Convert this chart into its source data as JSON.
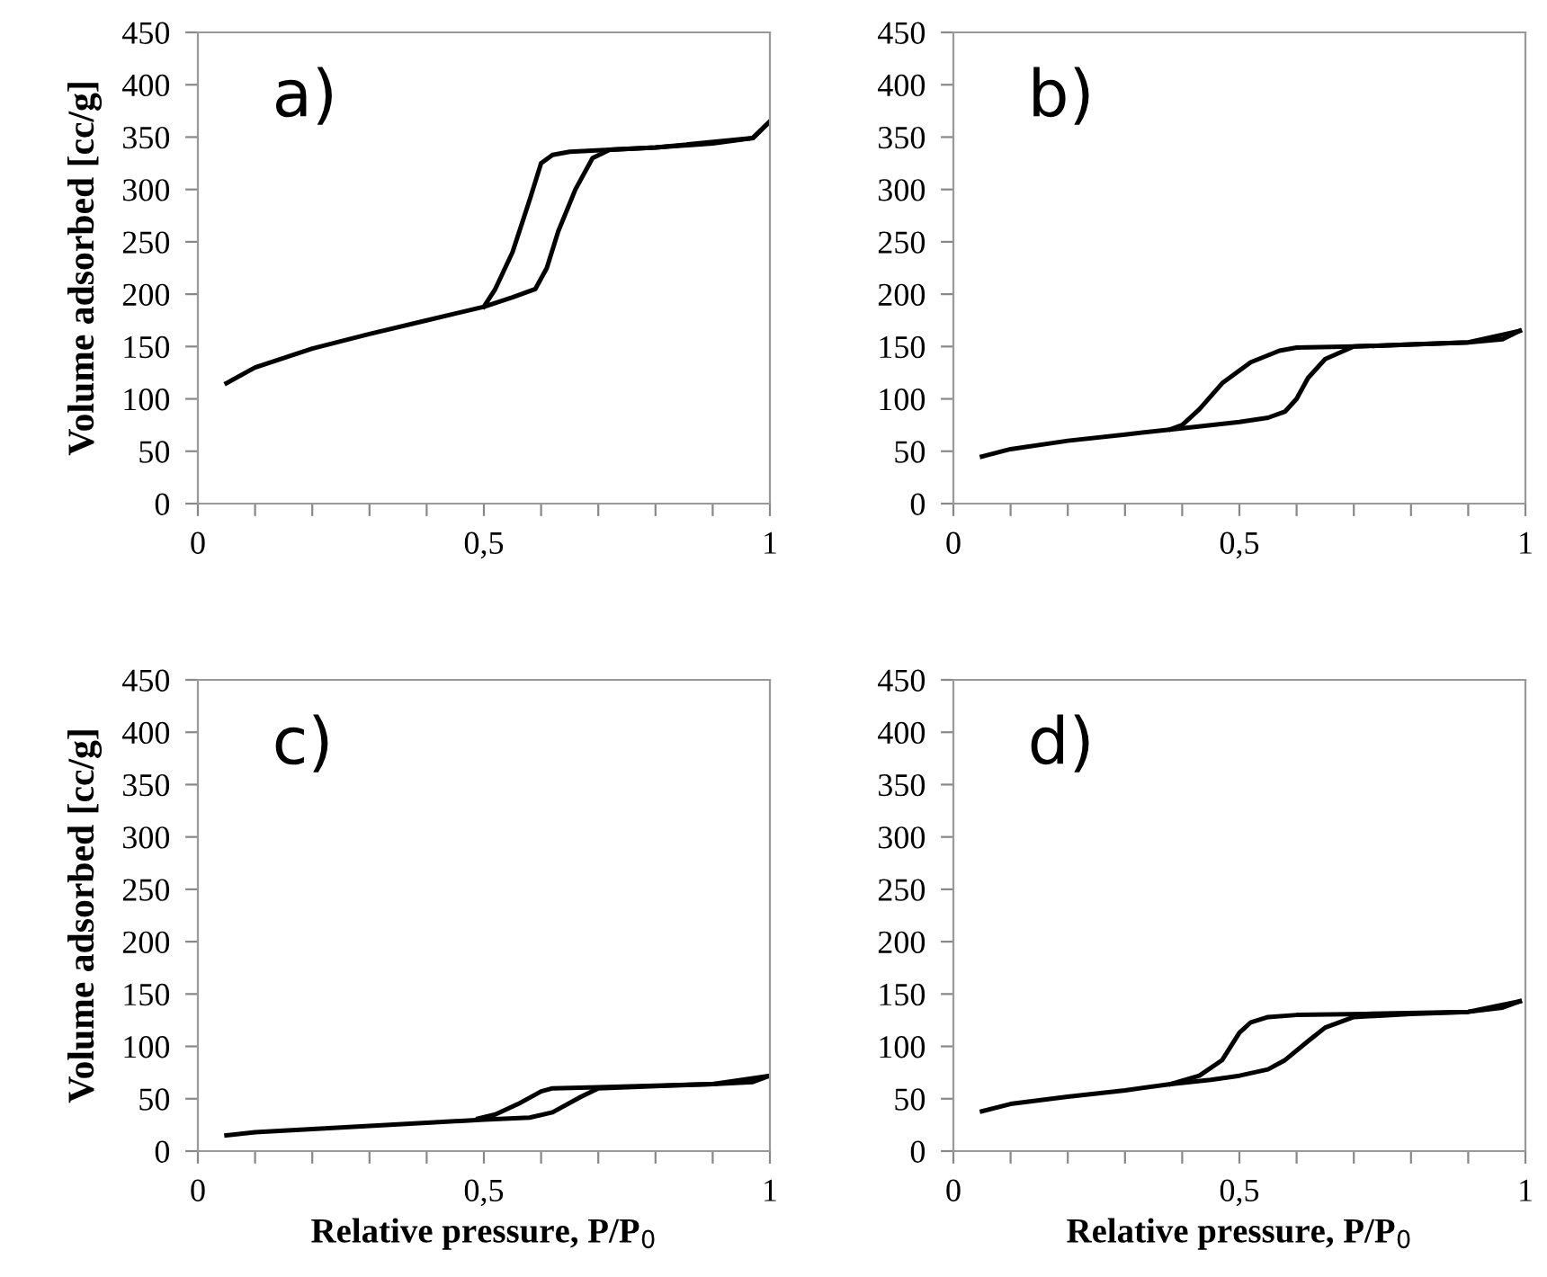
{
  "chart_data": [
    {
      "type": "line",
      "ylabel": "Volume adsorbed [cc/g]",
      "annotations": [
        "a)"
      ],
      "xlim": [
        0,
        1
      ],
      "ylim": [
        0,
        450
      ],
      "xticks": [
        0,
        {
          "value": 0.1,
          "label": null
        },
        {
          "value": 0.2,
          "label": null
        },
        {
          "value": 0.3,
          "label": null
        },
        {
          "value": 0.4,
          "label": null
        },
        {
          "value": 0.5,
          "label": "0,5"
        },
        {
          "value": 0.6,
          "label": null
        },
        {
          "value": 0.7,
          "label": null
        },
        {
          "value": 0.8,
          "label": null
        },
        {
          "value": 0.9,
          "label": null
        },
        1
      ],
      "yticks": [
        0,
        50,
        100,
        150,
        200,
        250,
        300,
        350,
        400,
        450
      ],
      "grid": false,
      "legend": false,
      "marker": "none",
      "line_style": "solid",
      "series": [
        {
          "color": "#000000",
          "x": [
            0.05,
            0.1,
            0.2,
            0.3,
            0.4,
            0.5,
            0.55,
            0.59,
            0.61,
            0.63,
            0.66,
            0.69,
            0.72,
            0.8,
            0.9,
            0.97,
            1.0
          ],
          "values": [
            115,
            130,
            148,
            162,
            175,
            188,
            197,
            205,
            225,
            260,
            300,
            330,
            338,
            340,
            344,
            349,
            365
          ]
        },
        {
          "color": "#000000",
          "x": [
            1.0,
            0.97,
            0.8,
            0.72,
            0.65,
            0.62,
            0.6,
            0.58,
            0.55,
            0.52,
            0.5
          ],
          "values": [
            365,
            349,
            340,
            338,
            336,
            333,
            325,
            290,
            240,
            205,
            188
          ]
        }
      ]
    },
    {
      "type": "line",
      "annotations": [
        "b)"
      ],
      "xlim": [
        0,
        1
      ],
      "ylim": [
        0,
        450
      ],
      "xticks": [
        0,
        {
          "value": 0.1,
          "label": null
        },
        {
          "value": 0.2,
          "label": null
        },
        {
          "value": 0.3,
          "label": null
        },
        {
          "value": 0.4,
          "label": null
        },
        {
          "value": 0.5,
          "label": "0,5"
        },
        {
          "value": 0.6,
          "label": null
        },
        {
          "value": 0.7,
          "label": null
        },
        {
          "value": 0.8,
          "label": null
        },
        {
          "value": 0.9,
          "label": null
        },
        1
      ],
      "yticks": [
        0,
        50,
        100,
        150,
        200,
        250,
        300,
        350,
        400,
        450
      ],
      "grid": false,
      "legend": false,
      "marker": "none",
      "line_style": "solid",
      "series": [
        {
          "color": "#000000",
          "x": [
            0.05,
            0.1,
            0.2,
            0.3,
            0.4,
            0.5,
            0.55,
            0.58,
            0.6,
            0.62,
            0.65,
            0.7,
            0.8,
            0.9,
            0.96,
            0.99
          ],
          "values": [
            45,
            52,
            60,
            66,
            72,
            78,
            82,
            88,
            100,
            120,
            138,
            150,
            152,
            154,
            157,
            165
          ]
        },
        {
          "color": "#000000",
          "x": [
            0.99,
            0.9,
            0.7,
            0.6,
            0.57,
            0.52,
            0.47,
            0.43,
            0.4,
            0.38
          ],
          "values": [
            165,
            154,
            150,
            149,
            146,
            135,
            115,
            90,
            75,
            71
          ]
        }
      ]
    },
    {
      "type": "line",
      "ylabel": "Volume adsorbed [cc/g]",
      "xlabel": "Relative pressure, P/P$_{0}$",
      "annotations": [
        "c)"
      ],
      "xlim": [
        0,
        1
      ],
      "ylim": [
        0,
        450
      ],
      "xticks": [
        0,
        {
          "value": 0.1,
          "label": null
        },
        {
          "value": 0.2,
          "label": null
        },
        {
          "value": 0.3,
          "label": null
        },
        {
          "value": 0.4,
          "label": null
        },
        {
          "value": 0.5,
          "label": "0,5"
        },
        {
          "value": 0.6,
          "label": null
        },
        {
          "value": 0.7,
          "label": null
        },
        {
          "value": 0.8,
          "label": null
        },
        {
          "value": 0.9,
          "label": null
        },
        1
      ],
      "yticks": [
        0,
        50,
        100,
        150,
        200,
        250,
        300,
        350,
        400,
        450
      ],
      "grid": false,
      "legend": false,
      "marker": "none",
      "line_style": "solid",
      "series": [
        {
          "color": "#000000",
          "x": [
            0.05,
            0.1,
            0.2,
            0.3,
            0.4,
            0.5,
            0.58,
            0.62,
            0.67,
            0.7,
            0.8,
            0.9,
            0.97,
            1.0
          ],
          "values": [
            15,
            18,
            21,
            24,
            27,
            30,
            32,
            37,
            52,
            60,
            62,
            64,
            66,
            72
          ]
        },
        {
          "color": "#000000",
          "x": [
            1.0,
            0.9,
            0.7,
            0.62,
            0.6,
            0.56,
            0.52,
            0.49
          ],
          "values": [
            72,
            64,
            61,
            60,
            57,
            45,
            35,
            31
          ]
        }
      ]
    },
    {
      "type": "line",
      "xlabel": "Relative pressure, P/P$_{0}$",
      "annotations": [
        "d)"
      ],
      "xlim": [
        0,
        1
      ],
      "ylim": [
        0,
        450
      ],
      "xticks": [
        0,
        {
          "value": 0.1,
          "label": null
        },
        {
          "value": 0.2,
          "label": null
        },
        {
          "value": 0.3,
          "label": null
        },
        {
          "value": 0.4,
          "label": null
        },
        {
          "value": 0.5,
          "label": "0,5"
        },
        {
          "value": 0.6,
          "label": null
        },
        {
          "value": 0.7,
          "label": null
        },
        {
          "value": 0.8,
          "label": null
        },
        {
          "value": 0.9,
          "label": null
        },
        1
      ],
      "yticks": [
        0,
        50,
        100,
        150,
        200,
        250,
        300,
        350,
        400,
        450
      ],
      "grid": false,
      "legend": false,
      "marker": "none",
      "line_style": "solid",
      "series": [
        {
          "color": "#000000",
          "x": [
            0.05,
            0.1,
            0.2,
            0.3,
            0.38,
            0.45,
            0.5,
            0.55,
            0.58,
            0.62,
            0.65,
            0.7,
            0.8,
            0.9,
            0.96,
            0.99
          ],
          "values": [
            38,
            45,
            52,
            58,
            64,
            68,
            72,
            78,
            87,
            105,
            118,
            128,
            131,
            133,
            137,
            143
          ]
        },
        {
          "color": "#000000",
          "x": [
            0.99,
            0.9,
            0.72,
            0.6,
            0.55,
            0.52,
            0.5,
            0.47,
            0.43,
            0.38
          ],
          "values": [
            143,
            133,
            131,
            130,
            128,
            123,
            113,
            87,
            72,
            64
          ]
        }
      ]
    }
  ]
}
